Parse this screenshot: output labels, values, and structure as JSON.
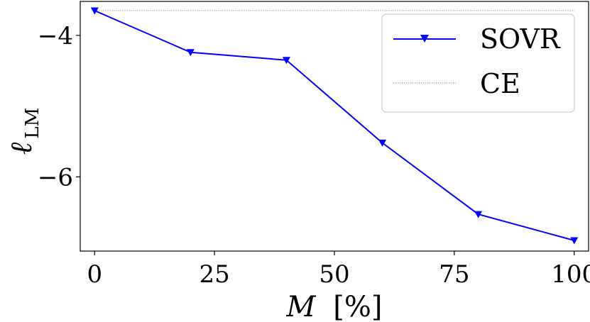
{
  "chart_data": {
    "type": "line",
    "xlabel_symbol": "M",
    "xlabel_unit": "[%]",
    "ylabel_symbol": "ℓ",
    "ylabel_subscript": "LM",
    "x": [
      0,
      20,
      40,
      60,
      80,
      100
    ],
    "series": [
      {
        "name": "SOVR",
        "values": [
          -3.65,
          -4.24,
          -4.35,
          -5.52,
          -6.53,
          -6.9
        ],
        "color": "#0000ff",
        "marker": "triangle-down"
      }
    ],
    "reference_lines": [
      {
        "name": "CE",
        "y": -3.65,
        "color": "#888888",
        "style": "dotted"
      }
    ],
    "xlim": [
      -3,
      103
    ],
    "ylim": [
      -7.05,
      -3.52
    ],
    "xticks": [
      0,
      25,
      50,
      75,
      100
    ],
    "xtick_labels": [
      "0",
      "25",
      "50",
      "75",
      "100"
    ],
    "yticks": [
      -4,
      -6
    ],
    "ytick_labels": [
      "−4",
      "−6"
    ],
    "grid": false,
    "legend_position": "top-right"
  }
}
